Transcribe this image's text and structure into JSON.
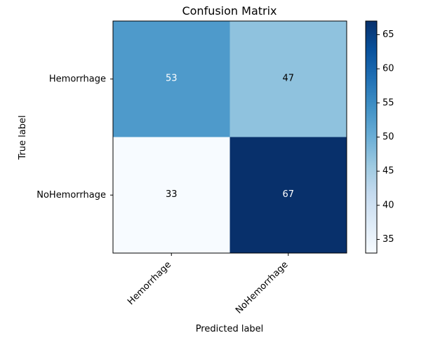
{
  "chart_data": {
    "type": "heatmap",
    "title": "Confusion Matrix",
    "xlabel": "Predicted label",
    "ylabel": "True label",
    "x_categories": [
      "Hemorrhage",
      "NoHemorrhage"
    ],
    "y_categories": [
      "Hemorrhage",
      "NoHemorrhage"
    ],
    "values": [
      [
        53,
        47
      ],
      [
        33,
        67
      ]
    ],
    "colormap": "Blues",
    "color_range": [
      33,
      67
    ],
    "colorbar_ticks": [
      35,
      40,
      45,
      50,
      55,
      60,
      65
    ],
    "grid": false,
    "colors": {
      "low": "#f7fbff",
      "high": "#08306b"
    }
  }
}
